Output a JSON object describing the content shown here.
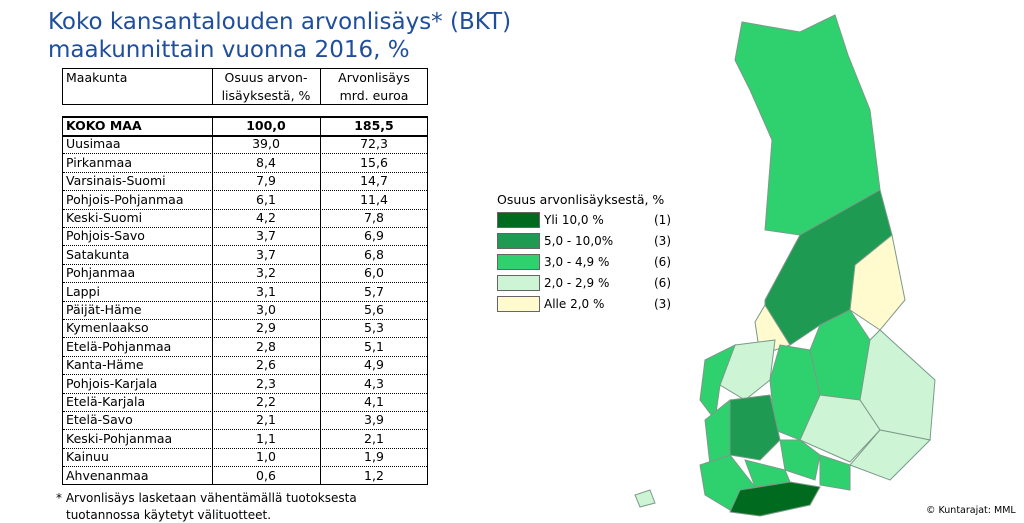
{
  "header": {
    "title": [
      "Koko kansantalouden arvonlisäys* (BKT)",
      "maakunnittain vuonna 2016, %"
    ]
  },
  "table": {
    "header": [
      [
        "Maakunta"
      ],
      [
        "Osuus arvon-",
        "lisäyksestä, %"
      ],
      [
        "Arvonlisäys",
        "mrd. euroa"
      ]
    ],
    "total": [
      "KOKO MAA",
      "100,0",
      "185,5"
    ],
    "rows": [
      [
        "Uusimaa",
        "39,0",
        "72,3"
      ],
      [
        "Pirkanmaa",
        "8,4",
        "15,6"
      ],
      [
        "Varsinais-Suomi",
        "7,9",
        "14,7"
      ],
      [
        "Pohjois-Pohjanmaa",
        "6,1",
        "11,4"
      ],
      [
        "Keski-Suomi",
        "4,2",
        "7,8"
      ],
      [
        "Pohjois-Savo",
        "3,7",
        "6,9"
      ],
      [
        "Satakunta",
        "3,7",
        "6,8"
      ],
      [
        "Pohjanmaa",
        "3,2",
        "6,0"
      ],
      [
        "Lappi",
        "3,1",
        "5,7"
      ],
      [
        "Päijät-Häme",
        "3,0",
        "5,6"
      ],
      [
        "Kymenlaakso",
        "2,9",
        "5,3"
      ],
      [
        "Etelä-Pohjanmaa",
        "2,8",
        "5,1"
      ],
      [
        "Kanta-Häme",
        "2,6",
        "4,9"
      ],
      [
        "Pohjois-Karjala",
        "2,3",
        "4,3"
      ],
      [
        "Etelä-Karjala",
        "2,2",
        "4,1"
      ],
      [
        "Etelä-Savo",
        "2,1",
        "3,9"
      ],
      [
        "Keski-Pohjanmaa",
        "1,1",
        "2,1"
      ],
      [
        "Kainuu",
        "1,0",
        "1,9"
      ],
      [
        "Ahvenanmaa",
        "0,6",
        "1,2"
      ]
    ]
  },
  "footnote": [
    "* Arvonlisäys lasketaan vähentämällä tuotoksesta",
    "tuotannossa käytetyt välituotteet."
  ],
  "legend": {
    "title": "Osuus arvonlisäyksestä, %",
    "items": [
      {
        "label": "Yli 10,0 %",
        "count": "(1)",
        "color": "#006b1f"
      },
      {
        "label": "5,0 - 10,0%",
        "count": "(3)",
        "color": "#1e9a52"
      },
      {
        "label": "3,0 - 4,9 %",
        "count": "(6)",
        "color": "#2fd16e"
      },
      {
        "label": "2,0 - 2,9 %",
        "count": "(6)",
        "color": "#cdf5d5"
      },
      {
        "label": "Alle 2,0 %",
        "count": "(3)",
        "color": "#fffbcf"
      }
    ]
  },
  "credit": "© Kuntarajat: MML"
}
